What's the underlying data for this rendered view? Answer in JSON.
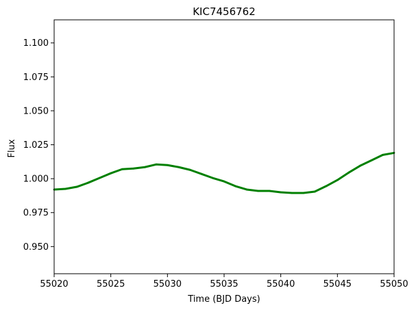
{
  "chart_data": {
    "type": "line",
    "title": "KIC7456762",
    "xlabel": "Time (BJD Days)",
    "ylabel": "Flux",
    "xlim": [
      55020,
      55050
    ],
    "ylim": [
      0.93,
      1.117
    ],
    "x_ticks": [
      55020,
      55025,
      55030,
      55035,
      55040,
      55045,
      55050
    ],
    "x_tick_labels": [
      "55020",
      "55025",
      "55030",
      "55035",
      "55040",
      "55045",
      "55050"
    ],
    "y_ticks": [
      0.95,
      0.975,
      1.0,
      1.025,
      1.05,
      1.075,
      1.1
    ],
    "y_tick_labels": [
      "0.950",
      "0.975",
      "1.000",
      "1.025",
      "1.050",
      "1.075",
      "1.100"
    ],
    "grid": false,
    "legend": "none",
    "series": [
      {
        "color": "#008000",
        "x": [
          55020,
          55021,
          55022,
          55023,
          55024,
          55025,
          55026,
          55027,
          55028,
          55029,
          55030,
          55031,
          55032,
          55033,
          55034,
          55035,
          55036,
          55037,
          55038,
          55039,
          55040,
          55041,
          55042,
          55043,
          55044,
          55045,
          55046,
          55047,
          55048,
          55049,
          55050
        ],
        "y": [
          0.992,
          0.9925,
          0.994,
          0.997,
          1.0005,
          1.004,
          1.007,
          1.0075,
          1.0085,
          1.0105,
          1.01,
          1.0085,
          1.0065,
          1.0035,
          1.0005,
          0.998,
          0.9945,
          0.992,
          0.991,
          0.991,
          0.99,
          0.9895,
          0.9895,
          0.9905,
          0.9945,
          0.999,
          1.0045,
          1.0095,
          1.0135,
          1.0175,
          1.019
        ]
      }
    ]
  }
}
